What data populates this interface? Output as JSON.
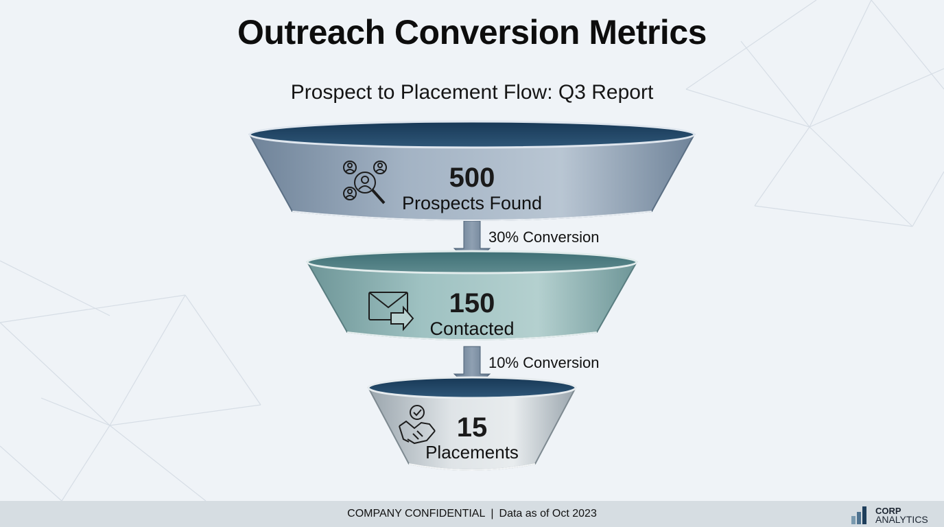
{
  "title": "Outreach Conversion Metrics",
  "subtitle": "Prospect to Placement Flow: Q3 Report",
  "stages": [
    {
      "value": "500",
      "label": "Prospects Found",
      "icon": "people-search-icon"
    },
    {
      "value": "150",
      "label": "Contacted",
      "icon": "email-send-icon"
    },
    {
      "value": "15",
      "label": "Placements",
      "icon": "handshake-check-icon"
    }
  ],
  "conversions": [
    "30% Conversion",
    "10% Conversion"
  ],
  "footer": {
    "confidential": "COMPANY CONFIDENTIAL",
    "separator": "|",
    "date": "Data as of Oct 2023"
  },
  "logo": {
    "line1": "CORP",
    "line2": "ANALYTICS"
  },
  "colors": {
    "stage1": "#8fa3b8",
    "stage2": "#8fb5b5",
    "stage3": "#c7cfd3",
    "arrow": "#7c8ea2",
    "rim_dark": "#1e4466",
    "footer_bg": "#d6dde2"
  }
}
